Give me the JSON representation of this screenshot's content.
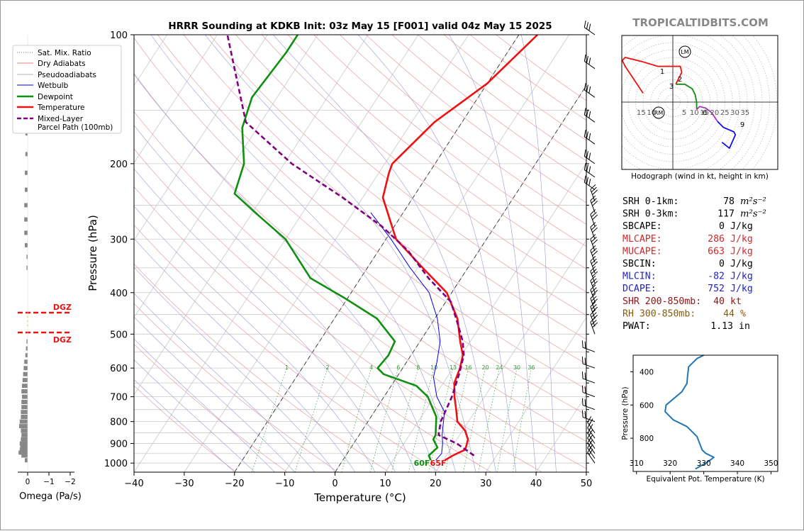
{
  "title": "HRRR Sounding at KDKB Init: 03z May 15 [F001] valid 04z May 15 2025",
  "watermark": "TROPICALTIDBITS.COM",
  "main": {
    "xlabel": "Temperature (°C)",
    "ylabel": "Pressure (hPa)",
    "xticks": [
      "−40",
      "−30",
      "−20",
      "−10",
      "0",
      "10",
      "20",
      "30",
      "40",
      "50"
    ],
    "yticks": [
      "100",
      "200",
      "300",
      "400",
      "500",
      "600",
      "700",
      "800",
      "900",
      "1000"
    ],
    "surface_td_label": "60F",
    "surface_t_label": "65F",
    "mixing_ratio_labels": [
      "1",
      "2",
      "4",
      "6",
      "8",
      "10",
      "13",
      "16",
      "20",
      "24",
      "30",
      "36"
    ]
  },
  "legend": {
    "items": [
      {
        "label": "Sat. Mix. Ratio",
        "color": "#777777",
        "style": "dotted"
      },
      {
        "label": "Dry Adiabats",
        "color": "#e08080",
        "style": "solid"
      },
      {
        "label": "Pseudoadiabats",
        "color": "#999999",
        "style": "dashdot"
      },
      {
        "label": "Wetbulb",
        "color": "#0000ee",
        "style": "solid"
      },
      {
        "label": "Dewpoint",
        "color": "#109010",
        "style": "solid"
      },
      {
        "label": "Temperature",
        "color": "#ee1111",
        "style": "solid"
      },
      {
        "label": "Mixed-Layer",
        "label2": "Parcel Path (100mb)",
        "color": "#800080",
        "style": "dashed"
      }
    ]
  },
  "omega": {
    "xlabel": "Omega (Pa/s)",
    "xticks": [
      "0",
      "−1",
      "−2"
    ],
    "dgz_label": "DGZ"
  },
  "hodograph": {
    "caption": "Hodograph (wind in kt, height in km)",
    "ring_labels": [
      "15",
      "10",
      "5",
      "10",
      "15",
      "20",
      "25",
      "30",
      "35"
    ],
    "height_labels": [
      "1",
      "2",
      "3",
      "6",
      "9"
    ],
    "rm_label": "RM",
    "lm_label": "LM"
  },
  "params": [
    {
      "label": "SRH 0-1km:",
      "value": "78",
      "unit": "m²s⁻²",
      "color": "#000000"
    },
    {
      "label": "SRH 0-3km:",
      "value": "117",
      "unit": "m²s⁻²",
      "color": "#000000"
    },
    {
      "label": "SBCAPE:",
      "value": "0",
      "unit": "J/kg",
      "color": "#000000"
    },
    {
      "label": "MLCAPE:",
      "value": "286",
      "unit": "J/kg",
      "color": "#d62728"
    },
    {
      "label": "MUCAPE:",
      "value": "663",
      "unit": "J/kg",
      "color": "#d62728"
    },
    {
      "label": "SBCIN:",
      "value": "0",
      "unit": "J/kg",
      "color": "#000000"
    },
    {
      "label": "MLCIN:",
      "value": "-82",
      "unit": "J/kg",
      "color": "#2020d0"
    },
    {
      "label": "DCAPE:",
      "value": "752",
      "unit": "J/kg",
      "color": "#2020d0"
    },
    {
      "label": "SHR 200-850mb:",
      "value": "40",
      "unit": "kt",
      "color": "#a01010"
    },
    {
      "label": "RH 300-850mb:",
      "value": "44",
      "unit": "%",
      "color": "#8b5a00"
    },
    {
      "label": "PWAT:",
      "value": "1.13",
      "unit": "in",
      "color": "#000000"
    }
  ],
  "theta_e": {
    "xlabel": "Equivalent Pot. Temperature (K)",
    "ylabel": "Pressure (hPa)",
    "xticks": [
      "310",
      "320",
      "330",
      "340",
      "350"
    ],
    "yticks": [
      "400",
      "600",
      "800"
    ]
  },
  "chart_data": [
    {
      "type": "line",
      "title": "HRRR Sounding at KDKB Init: 03z May 15 [F001] valid 04z May 15 2025",
      "xlabel": "Temperature (°C)",
      "ylabel": "Pressure (hPa)",
      "xlim": [
        -40,
        50
      ],
      "ylim": [
        1050,
        100
      ],
      "yscale": "log",
      "skew": "skew-T",
      "series": [
        {
          "name": "Temperature",
          "color": "#ee1111",
          "x": [
            20.3,
            21.3,
            23.0,
            22.2,
            20.5,
            17.8,
            16.0,
            14.0,
            12.2,
            11.4,
            10.3,
            8.0,
            4.5,
            -1.0,
            -9.0,
            -18.0,
            -26.0,
            -28.0,
            -28.5,
            -25.5,
            -20.0,
            -16.3
          ],
          "y": [
            985,
            960,
            930,
            880,
            840,
            800,
            750,
            700,
            650,
            600,
            560,
            520,
            460,
            400,
            350,
            300,
            240,
            210,
            200,
            160,
            130,
            100
          ]
        },
        {
          "name": "Dewpoint",
          "color": "#109010",
          "x": [
            17.5,
            16.5,
            17.2,
            15.3,
            15.2,
            13.0,
            8.7,
            5.0,
            -3.0,
            -5.0,
            -4.5,
            -5.0,
            -11.5,
            -21.0,
            -30.0,
            -40.0,
            -49.5,
            -56.0,
            -58.0,
            -63.0,
            -65.0,
            -64.0,
            -64.0,
            -64.0
          ],
          "y": [
            985,
            960,
            920,
            880,
            860,
            780,
            700,
            660,
            620,
            600,
            560,
            520,
            460,
            410,
            370,
            300,
            260,
            235,
            200,
            165,
            140,
            110,
            100,
            100
          ]
        },
        {
          "name": "Wetbulb",
          "color": "#0000ee",
          "x": [
            18.5,
            18.8,
            17.7,
            16.5,
            14.0,
            10.5,
            7.3,
            6.0,
            4.0,
            0.5,
            -4.5,
            -11.5,
            -19.0,
            -26.5
          ],
          "y": [
            985,
            950,
            900,
            860,
            760,
            700,
            630,
            580,
            520,
            460,
            400,
            350,
            300,
            260
          ]
        },
        {
          "name": "Mixed-Layer Parcel Path (100mb)",
          "color": "#800080",
          "x": [
            25.5,
            20.5,
            15.8,
            14.5,
            13.5,
            12.0,
            10.5,
            8.5,
            5.0,
            1.0,
            -6.5,
            -14.0,
            -22.5,
            -34.0,
            -48.5,
            -63.0,
            -78.0
          ],
          "y": [
            960,
            900,
            860,
            800,
            700,
            620,
            560,
            520,
            470,
            420,
            370,
            320,
            280,
            240,
            200,
            160,
            100
          ]
        }
      ]
    },
    {
      "type": "line",
      "title": "",
      "xlabel": "Equivalent Pot. Temperature (K)",
      "ylabel": "Pressure (hPa)",
      "xlim": [
        309,
        352
      ],
      "ylim": [
        1000,
        300
      ],
      "series": [
        {
          "name": "",
          "color": "#1f77b4",
          "x": [
            327.5,
            331.0,
            333.0,
            330.5,
            329.5,
            328.0,
            325.0,
            321.0,
            318.5,
            318.8,
            323.5,
            325.0,
            325.2,
            325.5,
            326.5,
            328.0,
            330.0
          ],
          "y": [
            985,
            945,
            915,
            890,
            870,
            790,
            730,
            690,
            640,
            600,
            520,
            470,
            420,
            370,
            350,
            320,
            300
          ]
        }
      ]
    },
    {
      "type": "bar",
      "title": "",
      "xlabel": "Omega (Pa/s)",
      "ylabel": "",
      "xlim": [
        0.3,
        -2.3
      ],
      "categories": [
        985,
        960,
        945,
        930,
        915,
        900,
        880,
        860,
        840,
        820,
        800,
        780,
        760,
        740,
        720,
        700,
        680,
        660,
        640,
        620,
        600,
        580,
        560,
        540,
        520,
        350,
        330,
        310,
        290,
        270,
        250,
        230,
        210,
        190,
        170,
        150,
        130
      ],
      "values": [
        -0.25,
        -0.55,
        -0.8,
        -0.7,
        -0.65,
        -0.7,
        -0.6,
        -0.55,
        -0.6,
        -0.75,
        -0.7,
        -0.6,
        -0.6,
        -0.55,
        -0.55,
        -0.5,
        -0.55,
        -0.5,
        -0.45,
        -0.4,
        -0.35,
        -0.3,
        -0.2,
        -0.15,
        -0.1,
        -0.1,
        -0.1,
        -0.25,
        -0.3,
        -0.3,
        -0.3,
        -0.25,
        -0.25,
        -0.2,
        -0.2,
        -0.15,
        -0.15
      ]
    },
    {
      "type": "line",
      "title": "",
      "xlabel": "",
      "ylabel": "",
      "series": [
        {
          "name": "0-3 km",
          "color": "#ee1111",
          "u": [
            -20,
            -32,
            -34,
            -32,
            -20,
            -10,
            5,
            6,
            4,
            2
          ],
          "v": [
            6,
            24,
            28,
            30,
            27,
            24,
            24,
            20,
            16,
            12
          ]
        },
        {
          "name": "3-6 km",
          "color": "#109010",
          "u": [
            2,
            8,
            13,
            15,
            16,
            16
          ],
          "v": [
            12,
            12,
            9,
            5,
            0,
            -5
          ]
        },
        {
          "name": "6-9 km",
          "color": "#b030c0",
          "u": [
            16,
            18,
            22,
            26,
            30
          ],
          "v": [
            -5,
            -3,
            -4,
            -7,
            -13
          ]
        },
        {
          "name": "9+ km",
          "color": "#1010ee",
          "u": [
            30,
            34,
            41,
            42,
            38,
            33
          ],
          "v": [
            -13,
            -17,
            -20,
            -22,
            -31,
            -27
          ]
        }
      ],
      "storm_motion": {
        "RM": [
          -10,
          -8
        ],
        "LM": [
          10,
          38
        ]
      }
    }
  ]
}
